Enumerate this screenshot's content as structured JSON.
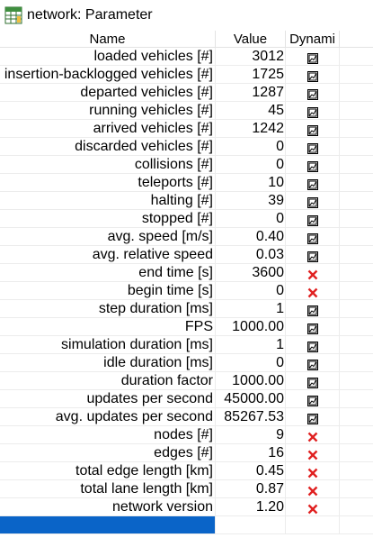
{
  "window": {
    "title": "network: Parameter",
    "icon": "table-grid-icon"
  },
  "columns": {
    "name": "Name",
    "value": "Value",
    "dynamic": "Dynami"
  },
  "icons": {
    "dynamic_true": "chart-icon",
    "dynamic_false": "red-x-icon"
  },
  "colors": {
    "selection": "#0a64c8",
    "red_x": "#e02020"
  },
  "rows": [
    {
      "name": "loaded vehicles [#]",
      "value": "3012",
      "dynamic": true
    },
    {
      "name": "insertion-backlogged vehicles [#]",
      "value": "1725",
      "dynamic": true
    },
    {
      "name": "departed vehicles [#]",
      "value": "1287",
      "dynamic": true
    },
    {
      "name": "running vehicles [#]",
      "value": "45",
      "dynamic": true
    },
    {
      "name": "arrived vehicles [#]",
      "value": "1242",
      "dynamic": true
    },
    {
      "name": "discarded vehicles [#]",
      "value": "0",
      "dynamic": true
    },
    {
      "name": "collisions [#]",
      "value": "0",
      "dynamic": true
    },
    {
      "name": "teleports [#]",
      "value": "10",
      "dynamic": true
    },
    {
      "name": "halting [#]",
      "value": "39",
      "dynamic": true
    },
    {
      "name": "stopped [#]",
      "value": "0",
      "dynamic": true
    },
    {
      "name": "avg. speed [m/s]",
      "value": "0.40",
      "dynamic": true
    },
    {
      "name": "avg. relative speed",
      "value": "0.03",
      "dynamic": true
    },
    {
      "name": "end time [s]",
      "value": "3600",
      "dynamic": false
    },
    {
      "name": "begin time [s]",
      "value": "0",
      "dynamic": false
    },
    {
      "name": "step duration [ms]",
      "value": "1",
      "dynamic": true
    },
    {
      "name": "FPS",
      "value": "1000.00",
      "dynamic": true
    },
    {
      "name": "simulation duration [ms]",
      "value": "1",
      "dynamic": true
    },
    {
      "name": "idle duration [ms]",
      "value": "0",
      "dynamic": true
    },
    {
      "name": "duration factor",
      "value": "1000.00",
      "dynamic": true
    },
    {
      "name": "updates per second",
      "value": "45000.00",
      "dynamic": true
    },
    {
      "name": "avg. updates per second",
      "value": "85267.53",
      "dynamic": true
    },
    {
      "name": "nodes [#]",
      "value": "9",
      "dynamic": false
    },
    {
      "name": "edges [#]",
      "value": "16",
      "dynamic": false
    },
    {
      "name": "total edge length [km]",
      "value": "0.45",
      "dynamic": false
    },
    {
      "name": "total lane length [km]",
      "value": "0.87",
      "dynamic": false
    },
    {
      "name": "network version",
      "value": "1.20",
      "dynamic": false
    },
    {
      "name": "",
      "value": "",
      "dynamic": null
    }
  ]
}
